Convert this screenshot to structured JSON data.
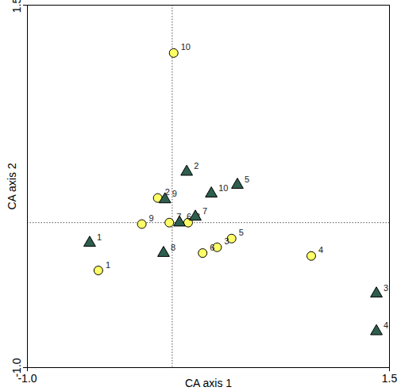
{
  "chart_data": {
    "type": "scatter",
    "xlabel": "CA axis 1",
    "ylabel": "CA axis 2",
    "xlim": [
      -1.0,
      1.5
    ],
    "ylim": [
      -1.0,
      1.5
    ],
    "xticks": [
      {
        "value": -1.0,
        "label": "-1.0"
      },
      1.5
    ],
    "yticks": [
      {
        "value": -1.0,
        "label": "-1.0"
      },
      1.5
    ],
    "series": [
      {
        "color": "#ffff66",
        "marker": "circle",
        "labels": [
          "1",
          "2",
          "3",
          "4",
          "5",
          "6",
          "7",
          "8",
          "9",
          "10"
        ],
        "x": [
          -0.51,
          -0.1,
          0.31,
          0.96,
          0.41,
          0.21,
          -0.02,
          0.11,
          -0.21,
          0.01
        ],
        "values": [
          -0.33,
          0.17,
          -0.17,
          -0.23,
          -0.11,
          -0.21,
          0.0,
          0.0,
          -0.01,
          1.17
        ]
      },
      {
        "color": "#2e5e4e",
        "marker": "triangle",
        "labels": [
          "1",
          "2",
          "3",
          "4",
          "5",
          "6",
          "7",
          "8",
          "9",
          "10"
        ],
        "x": [
          -0.57,
          0.1,
          1.41,
          1.41,
          0.45,
          0.05,
          0.16,
          -0.06,
          -0.05,
          0.27
        ],
        "values": [
          -0.14,
          0.35,
          -0.49,
          -0.75,
          0.26,
          0.0,
          0.04,
          -0.21,
          0.16,
          0.2
        ]
      }
    ]
  }
}
